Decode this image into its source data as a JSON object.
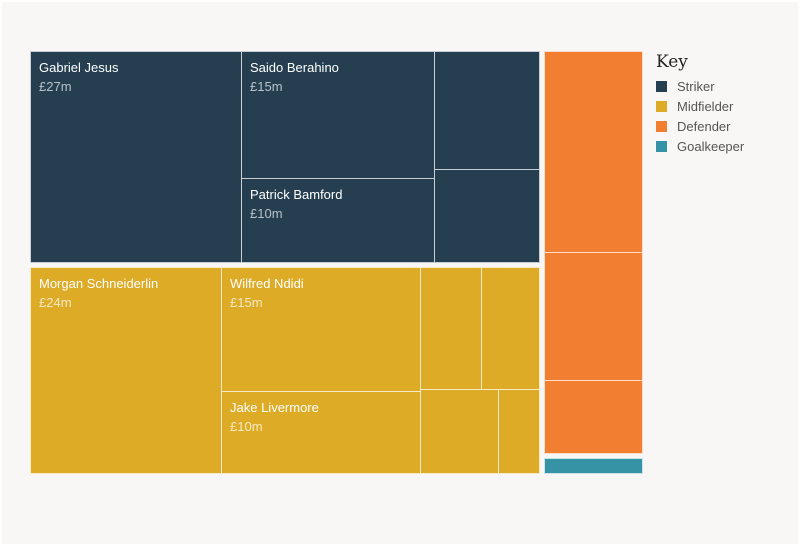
{
  "legend": {
    "title": "Key",
    "items": [
      {
        "label": "Striker",
        "color": "#253f51"
      },
      {
        "label": "Midfielder",
        "color": "#deab27"
      },
      {
        "label": "Defender",
        "color": "#f27e31"
      },
      {
        "label": "Goalkeeper",
        "color": "#3593a5"
      }
    ]
  },
  "chart_data": {
    "type": "treemap",
    "title": "",
    "unit": "£m",
    "groups": [
      {
        "position": "Striker",
        "color": "#253f51",
        "label_color": "#b8c2c9",
        "players": [
          {
            "name": "Gabriel Jesus",
            "fee_label": "£27m",
            "value": 27
          },
          {
            "name": "Saido Berahino",
            "fee_label": "£15m",
            "value": 15
          },
          {
            "name": "Patrick Bamford",
            "fee_label": "£10m",
            "value": 10
          },
          {
            "name": "",
            "fee_label": "",
            "value": 6.5
          },
          {
            "name": "",
            "fee_label": "",
            "value": 5.5
          }
        ]
      },
      {
        "position": "Midfielder",
        "color": "#deab27",
        "label_color": "#f6e8c2",
        "players": [
          {
            "name": "Morgan Schneiderlin",
            "fee_label": "£24m",
            "value": 24
          },
          {
            "name": "Wilfred Ndidi",
            "fee_label": "£15m",
            "value": 15
          },
          {
            "name": "Jake Livermore",
            "fee_label": "£10m",
            "value": 10
          },
          {
            "name": "",
            "fee_label": "",
            "value": 4
          },
          {
            "name": "",
            "fee_label": "",
            "value": 3.5
          },
          {
            "name": "",
            "fee_label": "",
            "value": 4.5
          },
          {
            "name": "",
            "fee_label": "",
            "value": 2.5
          }
        ]
      },
      {
        "position": "Defender",
        "color": "#f27e31",
        "label_color": "#fde0c8",
        "players": [
          {
            "name": "",
            "fee_label": "",
            "value": 14.5
          },
          {
            "name": "",
            "fee_label": "",
            "value": 9.5
          },
          {
            "name": "",
            "fee_label": "",
            "value": 5
          }
        ]
      },
      {
        "position": "Goalkeeper",
        "color": "#3593a5",
        "label_color": "#d2ecf1",
        "players": [
          {
            "name": "",
            "fee_label": "",
            "value": 1
          }
        ]
      }
    ]
  }
}
